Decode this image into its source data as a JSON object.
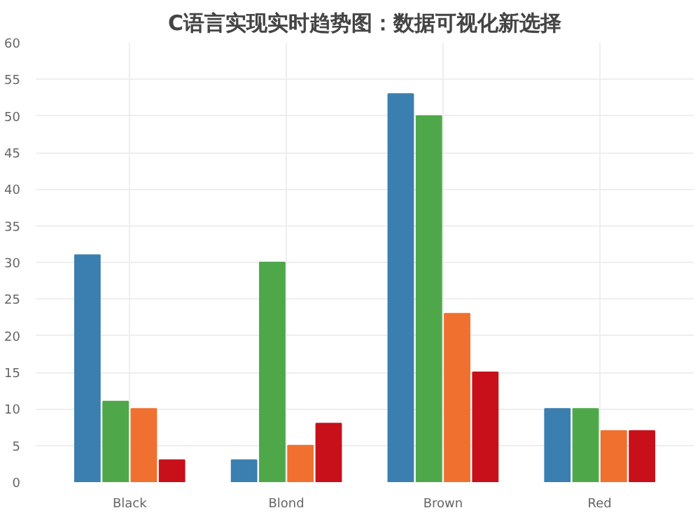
{
  "chart_data": {
    "type": "bar",
    "title": "C语言实现实时趋势图：数据可视化新选择",
    "categories": [
      "Black",
      "Blond",
      "Brown",
      "Red"
    ],
    "series": [
      {
        "color": "#3a7fb0",
        "values": [
          31,
          3,
          53,
          10
        ]
      },
      {
        "color": "#4ea84a",
        "values": [
          11,
          30,
          50,
          10
        ]
      },
      {
        "color": "#f07030",
        "values": [
          10,
          5,
          23,
          7
        ]
      },
      {
        "color": "#c8101a",
        "values": [
          3,
          8,
          15,
          7
        ]
      }
    ],
    "ylim": [
      0,
      60
    ],
    "yticks": [
      0,
      5,
      10,
      15,
      20,
      25,
      30,
      35,
      40,
      45,
      50,
      55,
      60
    ],
    "grid": true
  }
}
